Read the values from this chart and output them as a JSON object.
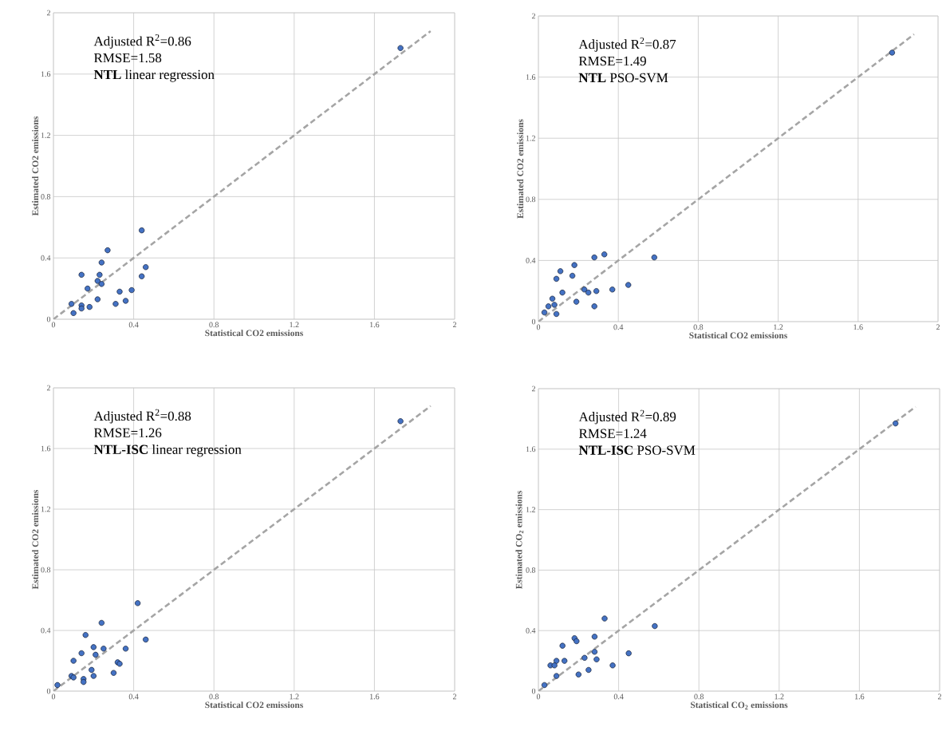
{
  "chart_data": [
    {
      "type": "scatter",
      "xlabel": "Statistical CO2 emissions",
      "ylabel": "Estimated CO2 emissions",
      "annotations": [
        "Adjusted R$^{2}$=0.86",
        "RMSE=1.58",
        "**NTL** linear regression"
      ],
      "xlim": [
        0,
        2
      ],
      "ylim": [
        0,
        2
      ],
      "xticks": [
        0,
        0.4,
        0.8,
        1.2,
        1.6,
        2
      ],
      "yticks": [
        0,
        0.4,
        0.8,
        1.2,
        1.6,
        2
      ],
      "grid": true,
      "marker": "circle",
      "series": [
        {
          "type": "scatter",
          "color": "#4472c4",
          "x": [
            0.44,
            0.27,
            0.24,
            0.46,
            0.14,
            0.23,
            0.44,
            0.22,
            0.24,
            0.17,
            0.39,
            0.33,
            0.36,
            0.22,
            0.09,
            0.14,
            0.31,
            0.18,
            0.14,
            0.1,
            1.73
          ],
          "values": [
            0.58,
            0.45,
            0.37,
            0.34,
            0.29,
            0.29,
            0.28,
            0.25,
            0.23,
            0.2,
            0.19,
            0.18,
            0.12,
            0.13,
            0.1,
            0.09,
            0.1,
            0.08,
            0.07,
            0.04,
            1.77
          ]
        },
        {
          "type": "line",
          "color": "#a5a5a5",
          "line_style": "dashed",
          "marker": "none",
          "x": [
            0,
            1.88
          ],
          "values": [
            0,
            1.88
          ]
        }
      ]
    },
    {
      "type": "scatter",
      "xlabel": "Statistical CO2 emissions",
      "ylabel": "Estimated CO2 emissions",
      "annotations": [
        "Adjusted R$^{2}$=0.87",
        "RMSE=1.49",
        "**NTL** PSO-SVM"
      ],
      "xlim": [
        0,
        2
      ],
      "ylim": [
        0,
        2
      ],
      "xticks": [
        0,
        0.4,
        0.8,
        1.2,
        1.6,
        2
      ],
      "yticks": [
        0,
        0.4,
        0.8,
        1.2,
        1.6,
        2
      ],
      "grid": true,
      "marker": "circle",
      "series": [
        {
          "type": "scatter",
          "color": "#4472c4",
          "x": [
            0.33,
            0.28,
            0.58,
            0.18,
            0.11,
            0.17,
            0.09,
            0.45,
            0.23,
            0.25,
            0.29,
            0.37,
            0.12,
            0.19,
            0.07,
            0.08,
            0.05,
            0.28,
            0.03,
            0.09,
            1.77
          ],
          "values": [
            0.44,
            0.42,
            0.42,
            0.37,
            0.33,
            0.3,
            0.28,
            0.24,
            0.21,
            0.19,
            0.2,
            0.21,
            0.19,
            0.13,
            0.15,
            0.11,
            0.1,
            0.1,
            0.06,
            0.05,
            1.76
          ]
        },
        {
          "type": "line",
          "color": "#a5a5a5",
          "line_style": "dashed",
          "marker": "none",
          "x": [
            0,
            1.88
          ],
          "values": [
            0,
            1.88
          ]
        }
      ]
    },
    {
      "type": "scatter",
      "xlabel": "Statistical CO2 emissions",
      "ylabel": "Estimated CO2 emissions",
      "annotations": [
        "Adjusted R$^{2}$=0.88",
        "RMSE=1.26",
        "**NTL-ISC** linear regression"
      ],
      "xlim": [
        0,
        2
      ],
      "ylim": [
        0,
        2
      ],
      "xticks": [
        0,
        0.4,
        0.8,
        1.2,
        1.6,
        2
      ],
      "yticks": [
        0,
        0.4,
        0.8,
        1.2,
        1.6,
        2
      ],
      "grid": true,
      "marker": "circle",
      "series": [
        {
          "type": "scatter",
          "color": "#4472c4",
          "x": [
            0.42,
            0.24,
            0.16,
            0.46,
            0.2,
            0.25,
            0.36,
            0.14,
            0.21,
            0.1,
            0.32,
            0.33,
            0.19,
            0.3,
            0.09,
            0.1,
            0.2,
            0.15,
            0.15,
            0.02,
            1.73
          ],
          "values": [
            0.58,
            0.45,
            0.37,
            0.34,
            0.29,
            0.28,
            0.28,
            0.25,
            0.24,
            0.2,
            0.19,
            0.18,
            0.14,
            0.12,
            0.1,
            0.09,
            0.1,
            0.08,
            0.06,
            0.04,
            1.78
          ]
        },
        {
          "type": "line",
          "color": "#a5a5a5",
          "line_style": "dashed",
          "marker": "none",
          "x": [
            0,
            1.88
          ],
          "values": [
            0,
            1.88
          ]
        }
      ]
    },
    {
      "type": "scatter",
      "xlabel": "Statistical CO$_{2}$ emissions",
      "ylabel": "Estimated CO$_{2}$ emissions",
      "annotations": [
        "Adjusted R$^{2}$=0.89",
        "RMSE=1.24",
        "**NTL-ISC** PSO-SVM"
      ],
      "xlim": [
        0,
        2
      ],
      "ylim": [
        0,
        2
      ],
      "xticks": [
        0,
        0.4,
        0.8,
        1.2,
        1.6,
        2
      ],
      "yticks": [
        0,
        0.4,
        0.8,
        1.2,
        1.6,
        2
      ],
      "grid": true,
      "marker": "circle",
      "series": [
        {
          "type": "scatter",
          "color": "#4472c4",
          "x": [
            0.33,
            0.58,
            0.28,
            0.18,
            0.19,
            0.12,
            0.28,
            0.45,
            0.23,
            0.29,
            0.09,
            0.13,
            0.06,
            0.08,
            0.37,
            0.25,
            0.2,
            0.09,
            0.03,
            1.78
          ],
          "values": [
            0.48,
            0.43,
            0.36,
            0.35,
            0.33,
            0.3,
            0.26,
            0.25,
            0.22,
            0.21,
            0.2,
            0.2,
            0.17,
            0.17,
            0.17,
            0.14,
            0.11,
            0.1,
            0.04,
            1.77
          ]
        },
        {
          "type": "line",
          "color": "#a5a5a5",
          "line_style": "dashed",
          "marker": "none",
          "x": [
            0,
            1.88
          ],
          "values": [
            0,
            1.88
          ]
        }
      ]
    }
  ]
}
